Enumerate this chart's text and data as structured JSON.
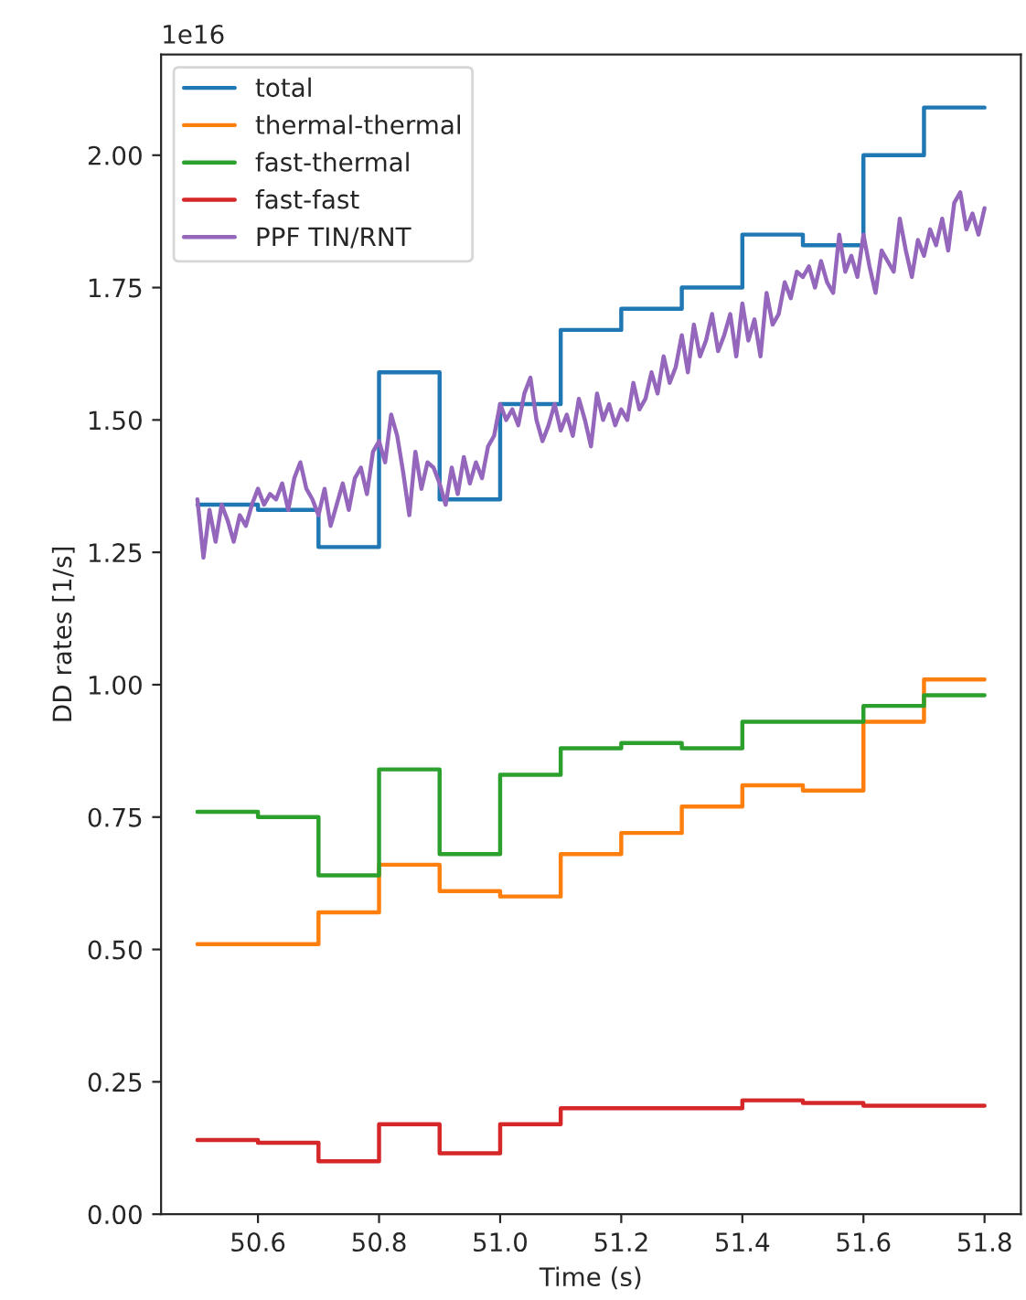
{
  "chart_data": {
    "type": "step",
    "xlabel": "Time (s)",
    "ylabel": "DD rates [1/s]",
    "annotations": [
      "1e16"
    ],
    "xlim": [
      50.44,
      51.86
    ],
    "ylim": [
      0,
      2.19
    ],
    "xticks": [
      {
        "value": 50.6,
        "label": "50.6"
      },
      {
        "value": 50.8,
        "label": "50.8"
      },
      {
        "value": 51.0,
        "label": "51.0"
      },
      {
        "value": 51.2,
        "label": "51.2"
      },
      {
        "value": 51.4,
        "label": "51.4"
      },
      {
        "value": 51.6,
        "label": "51.6"
      },
      {
        "value": 51.8,
        "label": "51.8"
      }
    ],
    "yticks": [
      {
        "value": 0,
        "label": "0.00"
      },
      {
        "value": 0.25,
        "label": "0.25"
      },
      {
        "value": 0.5,
        "label": "0.50"
      },
      {
        "value": 0.75,
        "label": "0.75"
      },
      {
        "value": 1.0,
        "label": "1.00"
      },
      {
        "value": 1.25,
        "label": "1.25"
      },
      {
        "value": 1.5,
        "label": "1.50"
      },
      {
        "value": 1.75,
        "label": "1.75"
      },
      {
        "value": 2.0,
        "label": "2.00"
      }
    ],
    "legend": "top left",
    "grid": false,
    "x": [
      50.5,
      50.6,
      50.7,
      50.8,
      50.9,
      51.0,
      51.1,
      51.2,
      51.3,
      51.4,
      51.5,
      51.6,
      51.7,
      51.8
    ],
    "series": [
      {
        "name": "total",
        "color": "#1f77b4",
        "values": [
          1.34,
          1.33,
          1.26,
          1.59,
          1.35,
          1.53,
          1.67,
          1.71,
          1.75,
          1.85,
          1.83,
          2.0,
          2.09,
          2.09
        ]
      },
      {
        "name": "thermal-thermal",
        "color": "#ff7f0e",
        "values": [
          0.51,
          0.51,
          0.57,
          0.66,
          0.61,
          0.6,
          0.68,
          0.72,
          0.77,
          0.81,
          0.8,
          0.93,
          1.01,
          1.01
        ]
      },
      {
        "name": "fast-thermal",
        "color": "#2ca02c",
        "values": [
          0.76,
          0.75,
          0.64,
          0.84,
          0.68,
          0.83,
          0.88,
          0.89,
          0.88,
          0.93,
          0.93,
          0.96,
          0.98,
          0.98
        ]
      },
      {
        "name": "fast-fast",
        "color": "#d62728",
        "values": [
          0.14,
          0.135,
          0.1,
          0.17,
          0.115,
          0.17,
          0.2,
          0.2,
          0.2,
          0.215,
          0.21,
          0.205,
          0.205,
          0.205
        ]
      },
      {
        "name": "PPF TIN/RNT",
        "color": "#9467bd",
        "type": "line",
        "x": [
          50.5,
          50.51,
          50.52,
          50.53,
          50.54,
          50.55,
          50.56,
          50.57,
          50.58,
          50.59,
          50.6,
          50.61,
          50.62,
          50.63,
          50.64,
          50.65,
          50.66,
          50.67,
          50.68,
          50.69,
          50.7,
          50.71,
          50.72,
          50.73,
          50.74,
          50.75,
          50.76,
          50.77,
          50.78,
          50.79,
          50.8,
          50.81,
          50.82,
          50.83,
          50.84,
          50.85,
          50.86,
          50.87,
          50.88,
          50.89,
          50.9,
          50.91,
          50.92,
          50.93,
          50.94,
          50.95,
          50.96,
          50.97,
          50.98,
          50.99,
          51.0,
          51.01,
          51.02,
          51.03,
          51.04,
          51.05,
          51.06,
          51.07,
          51.08,
          51.09,
          51.1,
          51.11,
          51.12,
          51.13,
          51.14,
          51.15,
          51.16,
          51.17,
          51.18,
          51.19,
          51.2,
          51.21,
          51.22,
          51.23,
          51.24,
          51.25,
          51.26,
          51.27,
          51.28,
          51.29,
          51.3,
          51.31,
          51.32,
          51.33,
          51.34,
          51.35,
          51.36,
          51.37,
          51.38,
          51.39,
          51.4,
          51.41,
          51.42,
          51.43,
          51.44,
          51.45,
          51.46,
          51.47,
          51.48,
          51.49,
          51.5,
          51.51,
          51.52,
          51.53,
          51.54,
          51.55,
          51.56,
          51.57,
          51.58,
          51.59,
          51.6,
          51.61,
          51.62,
          51.63,
          51.64,
          51.65,
          51.66,
          51.67,
          51.68,
          51.69,
          51.7,
          51.71,
          51.72,
          51.73,
          51.74,
          51.75,
          51.76,
          51.77,
          51.78,
          51.79,
          51.8
        ],
        "values": [
          1.35,
          1.24,
          1.33,
          1.27,
          1.34,
          1.31,
          1.27,
          1.32,
          1.3,
          1.34,
          1.37,
          1.34,
          1.36,
          1.35,
          1.38,
          1.33,
          1.39,
          1.42,
          1.37,
          1.35,
          1.32,
          1.37,
          1.3,
          1.34,
          1.38,
          1.33,
          1.39,
          1.41,
          1.36,
          1.44,
          1.46,
          1.42,
          1.51,
          1.47,
          1.4,
          1.32,
          1.44,
          1.37,
          1.42,
          1.41,
          1.38,
          1.34,
          1.41,
          1.36,
          1.43,
          1.38,
          1.42,
          1.39,
          1.45,
          1.47,
          1.53,
          1.5,
          1.52,
          1.49,
          1.55,
          1.58,
          1.5,
          1.46,
          1.49,
          1.53,
          1.48,
          1.51,
          1.47,
          1.54,
          1.5,
          1.45,
          1.55,
          1.5,
          1.53,
          1.49,
          1.52,
          1.5,
          1.57,
          1.52,
          1.54,
          1.59,
          1.55,
          1.62,
          1.57,
          1.6,
          1.66,
          1.59,
          1.68,
          1.62,
          1.65,
          1.7,
          1.63,
          1.66,
          1.7,
          1.62,
          1.72,
          1.65,
          1.69,
          1.62,
          1.74,
          1.68,
          1.7,
          1.76,
          1.73,
          1.78,
          1.77,
          1.79,
          1.75,
          1.8,
          1.76,
          1.74,
          1.85,
          1.78,
          1.81,
          1.77,
          1.85,
          1.79,
          1.74,
          1.82,
          1.8,
          1.78,
          1.88,
          1.82,
          1.77,
          1.84,
          1.81,
          1.86,
          1.83,
          1.88,
          1.82,
          1.91,
          1.93,
          1.86,
          1.89,
          1.85,
          1.9
        ]
      }
    ]
  }
}
